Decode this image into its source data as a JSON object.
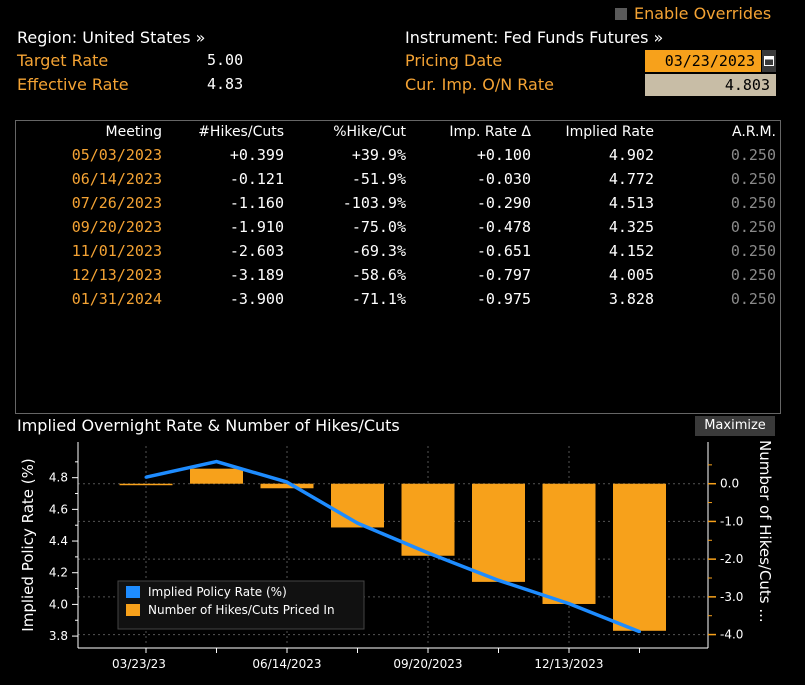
{
  "overrides": {
    "label": "Enable Overrides"
  },
  "header": {
    "region_label": "Region: United States »",
    "target_rate_label": "Target Rate",
    "target_rate_value": "5.00",
    "effective_rate_label": "Effective Rate",
    "effective_rate_value": "4.83",
    "instrument_label": "Instrument: Fed Funds Futures »",
    "pricing_date_label": "Pricing Date",
    "pricing_date_value": "03/23/2023",
    "calendar_icon": "calendar-icon",
    "imp_rate_label": "Cur. Imp. O/N Rate",
    "imp_rate_value": "4.803"
  },
  "table": {
    "columns": [
      "Meeting",
      "#Hikes/Cuts",
      "%Hike/Cut",
      "Imp. Rate Δ",
      "Implied Rate",
      "A.R.M."
    ],
    "rows": [
      [
        "05/03/2023",
        "+0.399",
        "+39.9%",
        "+0.100",
        "4.902",
        "0.250"
      ],
      [
        "06/14/2023",
        "-0.121",
        "-51.9%",
        "-0.030",
        "4.772",
        "0.250"
      ],
      [
        "07/26/2023",
        "-1.160",
        "-103.9%",
        "-0.290",
        "4.513",
        "0.250"
      ],
      [
        "09/20/2023",
        "-1.910",
        "-75.0%",
        "-0.478",
        "4.325",
        "0.250"
      ],
      [
        "11/01/2023",
        "-2.603",
        "-69.3%",
        "-0.651",
        "4.152",
        "0.250"
      ],
      [
        "12/13/2023",
        "-3.189",
        "-58.6%",
        "-0.797",
        "4.005",
        "0.250"
      ],
      [
        "01/31/2024",
        "-3.900",
        "-71.1%",
        "-0.975",
        "3.828",
        "0.250"
      ]
    ]
  },
  "chart_section": {
    "title": "Implied Overnight Rate & Number of Hikes/Cuts",
    "maximize_label": "Maximize"
  },
  "chart_data": {
    "type": "bar",
    "categories": [
      "03/23/2023",
      "05/03/2023",
      "06/14/2023",
      "07/26/2023",
      "09/20/2023",
      "11/01/2023",
      "12/13/2023",
      "01/31/2024"
    ],
    "series": [
      {
        "name": "Implied Policy Rate (%)",
        "type": "line",
        "axis": "left",
        "color": "#1e8cff",
        "values": [
          4.803,
          4.902,
          4.772,
          4.513,
          4.325,
          4.152,
          4.005,
          3.828
        ]
      },
      {
        "name": "Number of Hikes/Cuts Priced In",
        "type": "bar",
        "axis": "right",
        "color": "#f7a11b",
        "values": [
          0,
          0.399,
          -0.121,
          -1.16,
          -1.91,
          -2.603,
          -3.189,
          -3.9
        ]
      }
    ],
    "ylabel": "Implied Policy Rate (%)",
    "ylabel_right": "Number of Hikes/Cuts ...",
    "ylim": [
      3.75,
      5.0
    ],
    "ylim_right": [
      -4.25,
      1.0
    ],
    "yticks": [
      "4.8",
      "4.6",
      "4.4",
      "4.2",
      "4.0",
      "3.8"
    ],
    "yticks_right": [
      "0.0",
      "-1.0",
      "-2.0",
      "-3.0",
      "-4.0"
    ],
    "xticks": [
      "03/23/23",
      "06/14/2023",
      "09/20/2023",
      "12/13/2023"
    ],
    "legend": "bottom-left",
    "grid": true,
    "colors": {
      "line": "#1e8cff",
      "bar": "#f7a11b",
      "grid": "#555555",
      "axis_text": "#ffffff",
      "tick_right": "#f7a11b"
    }
  }
}
